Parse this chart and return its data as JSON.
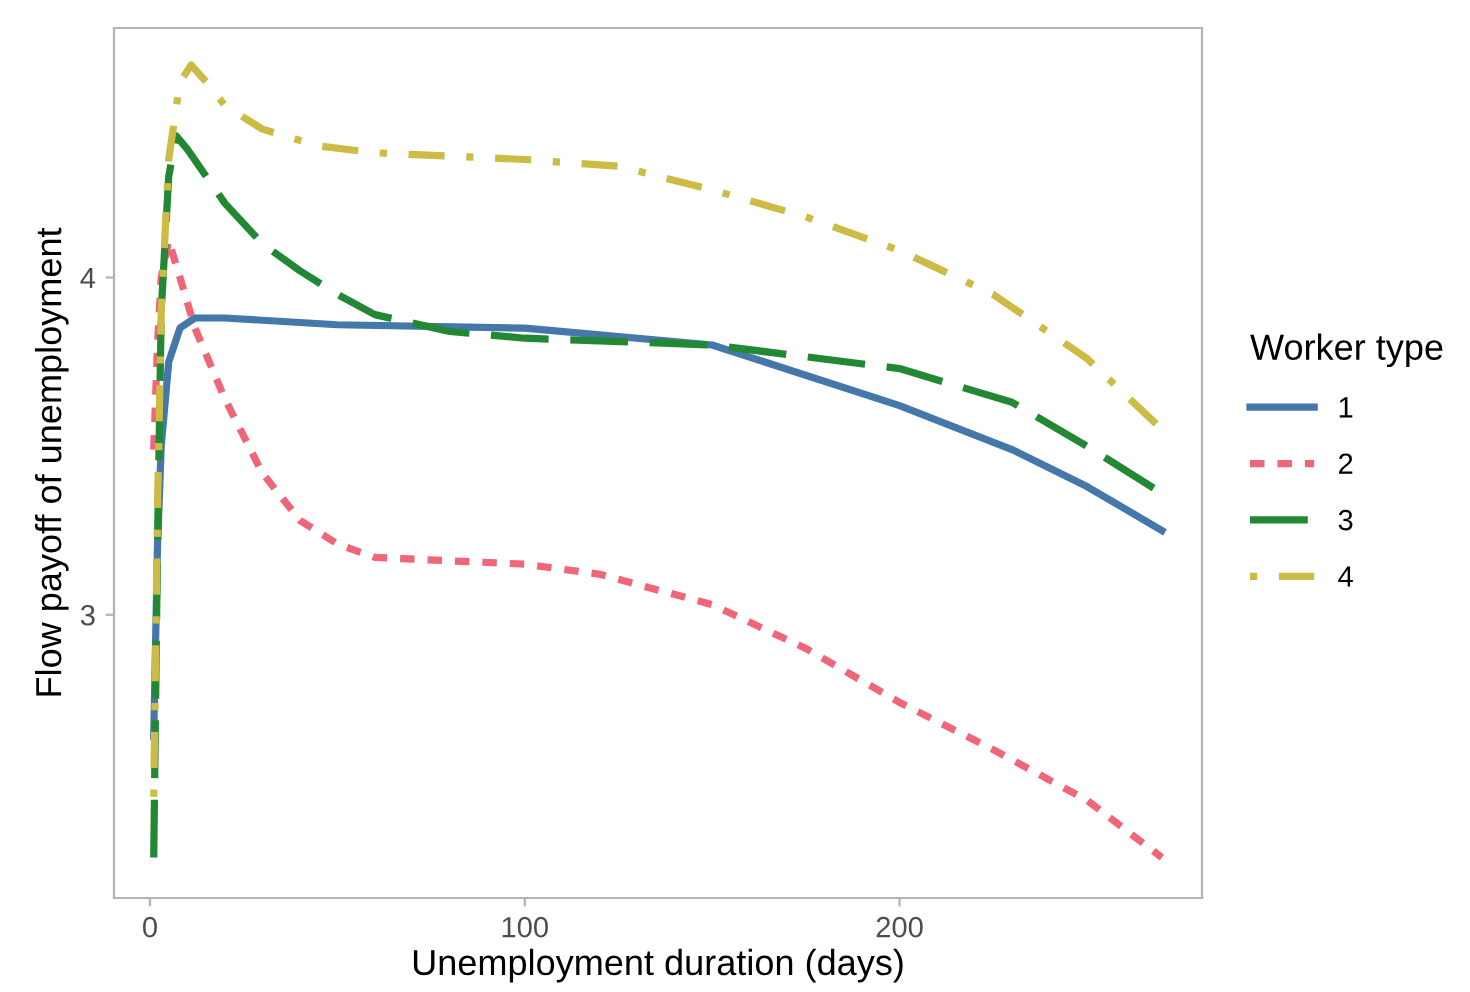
{
  "chart_data": {
    "type": "line",
    "xlabel": "Unemployment duration (days)",
    "ylabel": "Flow payoff of unemployment",
    "legend_title": "Worker type",
    "legend": "right",
    "grid": false,
    "xlim": [
      -9.6,
      280.7
    ],
    "ylim": [
      2.16,
      4.74
    ],
    "xticks": [
      0,
      100,
      200
    ],
    "yticks": [
      3,
      4
    ],
    "series": [
      {
        "name": "1",
        "color": "#4477aa",
        "line_style": "solid",
        "x": [
          1,
          2,
          3,
          5,
          8,
          12,
          20,
          50,
          100,
          150,
          200,
          230,
          250,
          270
        ],
        "values": [
          2.64,
          3.2,
          3.5,
          3.75,
          3.85,
          3.88,
          3.88,
          3.86,
          3.85,
          3.8,
          3.62,
          3.49,
          3.38,
          3.25
        ]
      },
      {
        "name": "2",
        "color": "#ee6677",
        "line_style": "dashed",
        "x": [
          1,
          2,
          3,
          5,
          8,
          12,
          20,
          30,
          40,
          50,
          60,
          80,
          100,
          120,
          150,
          175,
          200,
          225,
          250,
          270
        ],
        "values": [
          3.49,
          3.8,
          4.0,
          4.11,
          4.0,
          3.85,
          3.64,
          3.42,
          3.28,
          3.21,
          3.17,
          3.16,
          3.15,
          3.12,
          3.03,
          2.9,
          2.74,
          2.6,
          2.45,
          2.28
        ]
      },
      {
        "name": "3",
        "color": "#228833",
        "line_style": "longdash",
        "x": [
          1,
          2,
          3,
          5,
          7,
          10,
          15,
          20,
          30,
          40,
          50,
          60,
          80,
          100,
          150,
          200,
          230,
          250,
          270
        ],
        "values": [
          2.28,
          3.2,
          3.9,
          4.3,
          4.42,
          4.38,
          4.3,
          4.22,
          4.1,
          4.02,
          3.95,
          3.89,
          3.84,
          3.82,
          3.8,
          3.73,
          3.63,
          3.5,
          3.36
        ]
      },
      {
        "name": "4",
        "color": "#ccbb44",
        "line_style": "dashdot",
        "x": [
          1,
          2,
          3,
          5,
          8,
          11,
          15,
          20,
          30,
          45,
          60,
          100,
          125,
          150,
          175,
          200,
          225,
          250,
          270
        ],
        "values": [
          2.46,
          3.3,
          3.9,
          4.35,
          4.58,
          4.63,
          4.58,
          4.51,
          4.44,
          4.39,
          4.37,
          4.35,
          4.33,
          4.26,
          4.18,
          4.08,
          3.95,
          3.76,
          3.55
        ]
      }
    ]
  }
}
